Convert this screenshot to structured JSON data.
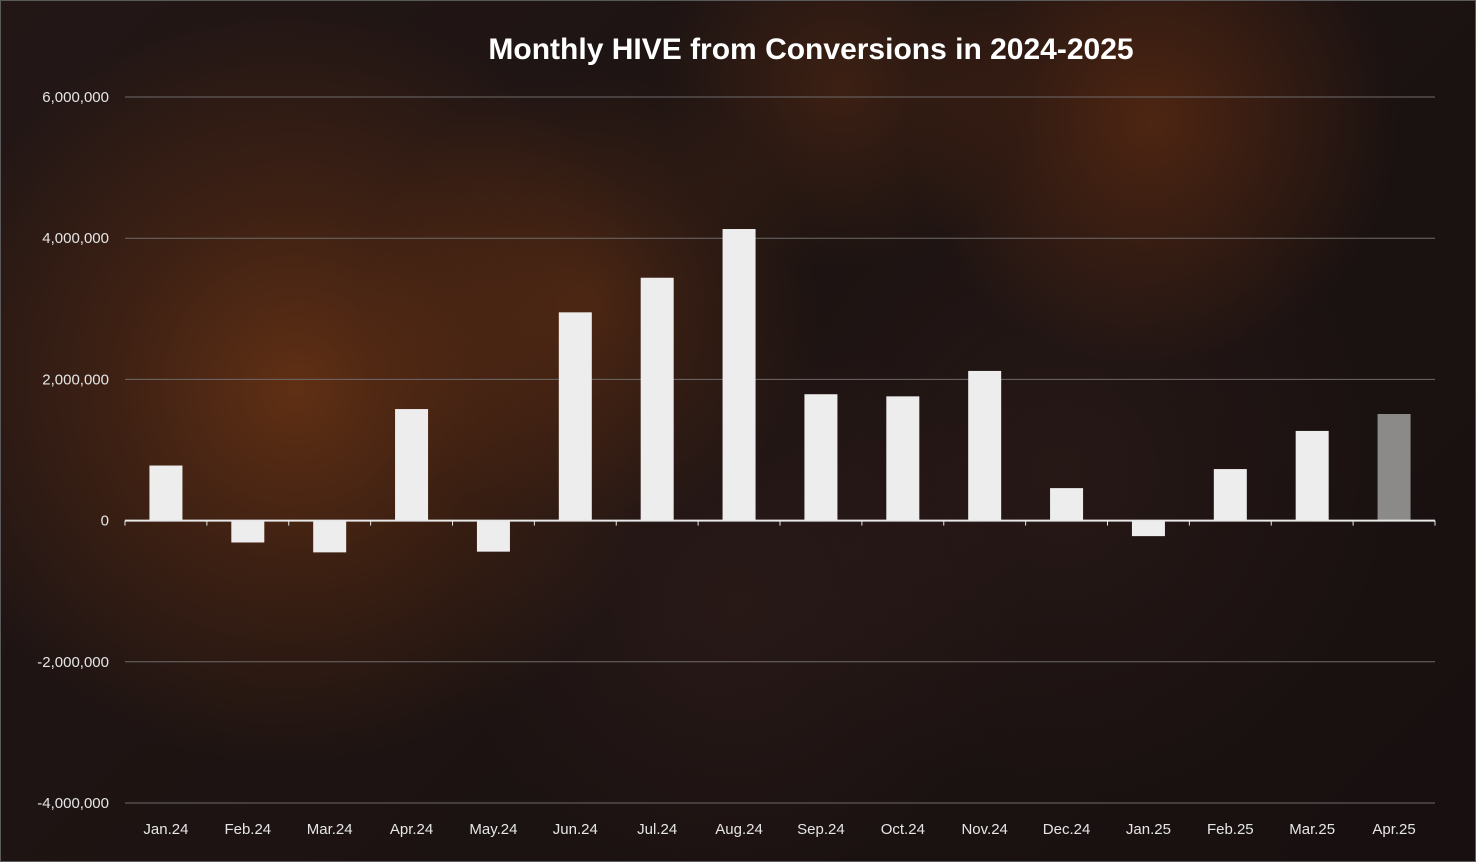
{
  "chart_data": {
    "type": "bar",
    "title": "Monthly HIVE from Conversions in 2024-2025",
    "xlabel": "",
    "ylabel": "",
    "ylim": [
      -4000000,
      6000000
    ],
    "yticks": [
      6000000,
      4000000,
      2000000,
      0,
      -2000000,
      -4000000
    ],
    "ytick_labels": [
      "6,000,000",
      "4,000,000",
      "2,000,000",
      "0",
      "-2,000,000",
      "-4,000,000"
    ],
    "grid": true,
    "legend": "none",
    "categories": [
      "Jan.24",
      "Feb.24",
      "Mar.24",
      "Apr.24",
      "May.24",
      "Jun.24",
      "Jul.24",
      "Aug.24",
      "Sep.24",
      "Oct.24",
      "Nov.24",
      "Dec.24",
      "Jan.25",
      "Feb.25",
      "Mar.25",
      "Apr.25"
    ],
    "values": [
      780000,
      -310000,
      -450000,
      1580000,
      -440000,
      2950000,
      3440000,
      4130000,
      1790000,
      1760000,
      2120000,
      460000,
      -220000,
      730000,
      1270000,
      1510000
    ],
    "bar_color": "#ededed",
    "highlight_index": 15,
    "highlight_color": "#8c8a89"
  }
}
